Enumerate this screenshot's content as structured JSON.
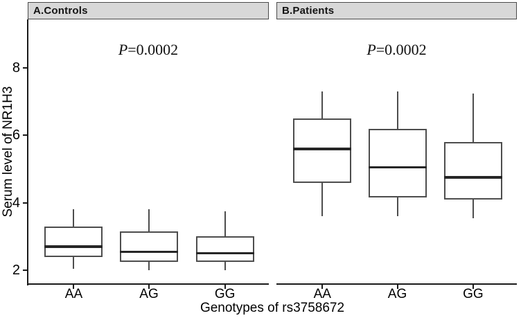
{
  "chart_data": {
    "type": "boxplot",
    "title": "",
    "xlabel": "Genotypes of rs3758672",
    "ylabel": "Serum level of NR1H3",
    "categories": [
      "AA",
      "AG",
      "GG"
    ],
    "yticks": [
      2,
      4,
      6,
      8
    ],
    "ylim": [
      1.59,
      9.44
    ],
    "grid": false,
    "legend": "none",
    "panels": [
      {
        "label": "A.Controls",
        "p_value": "P=0.0002",
        "boxes": [
          {
            "category": "AA",
            "whisker_low": 2.05,
            "q1": 2.4,
            "median": 2.7,
            "q3": 3.3,
            "whisker_high": 3.8
          },
          {
            "category": "AG",
            "whisker_low": 2.0,
            "q1": 2.25,
            "median": 2.55,
            "q3": 3.15,
            "whisker_high": 3.8
          },
          {
            "category": "GG",
            "whisker_low": 2.0,
            "q1": 2.25,
            "median": 2.5,
            "q3": 3.0,
            "whisker_high": 3.75
          }
        ]
      },
      {
        "label": "B.Patients",
        "p_value": "P=0.0002",
        "boxes": [
          {
            "category": "AA",
            "whisker_low": 3.6,
            "q1": 4.6,
            "median": 5.6,
            "q3": 6.5,
            "whisker_high": 7.3
          },
          {
            "category": "AG",
            "whisker_low": 3.6,
            "q1": 4.15,
            "median": 5.05,
            "q3": 6.2,
            "whisker_high": 7.3
          },
          {
            "category": "GG",
            "whisker_low": 3.55,
            "q1": 4.1,
            "median": 4.75,
            "q3": 5.8,
            "whisker_high": 7.25
          }
        ]
      }
    ],
    "colors": {
      "background": "#ffffff",
      "strip_fill": "#d8d8d8",
      "strip_border": "#4a4a4a",
      "box_fill": "#ffffff",
      "box_border": "#4d4d4d",
      "median_line": "#262626",
      "whisker": "#4d4d4d",
      "axis_line": "#1a1a1a",
      "text": "#000000"
    }
  }
}
